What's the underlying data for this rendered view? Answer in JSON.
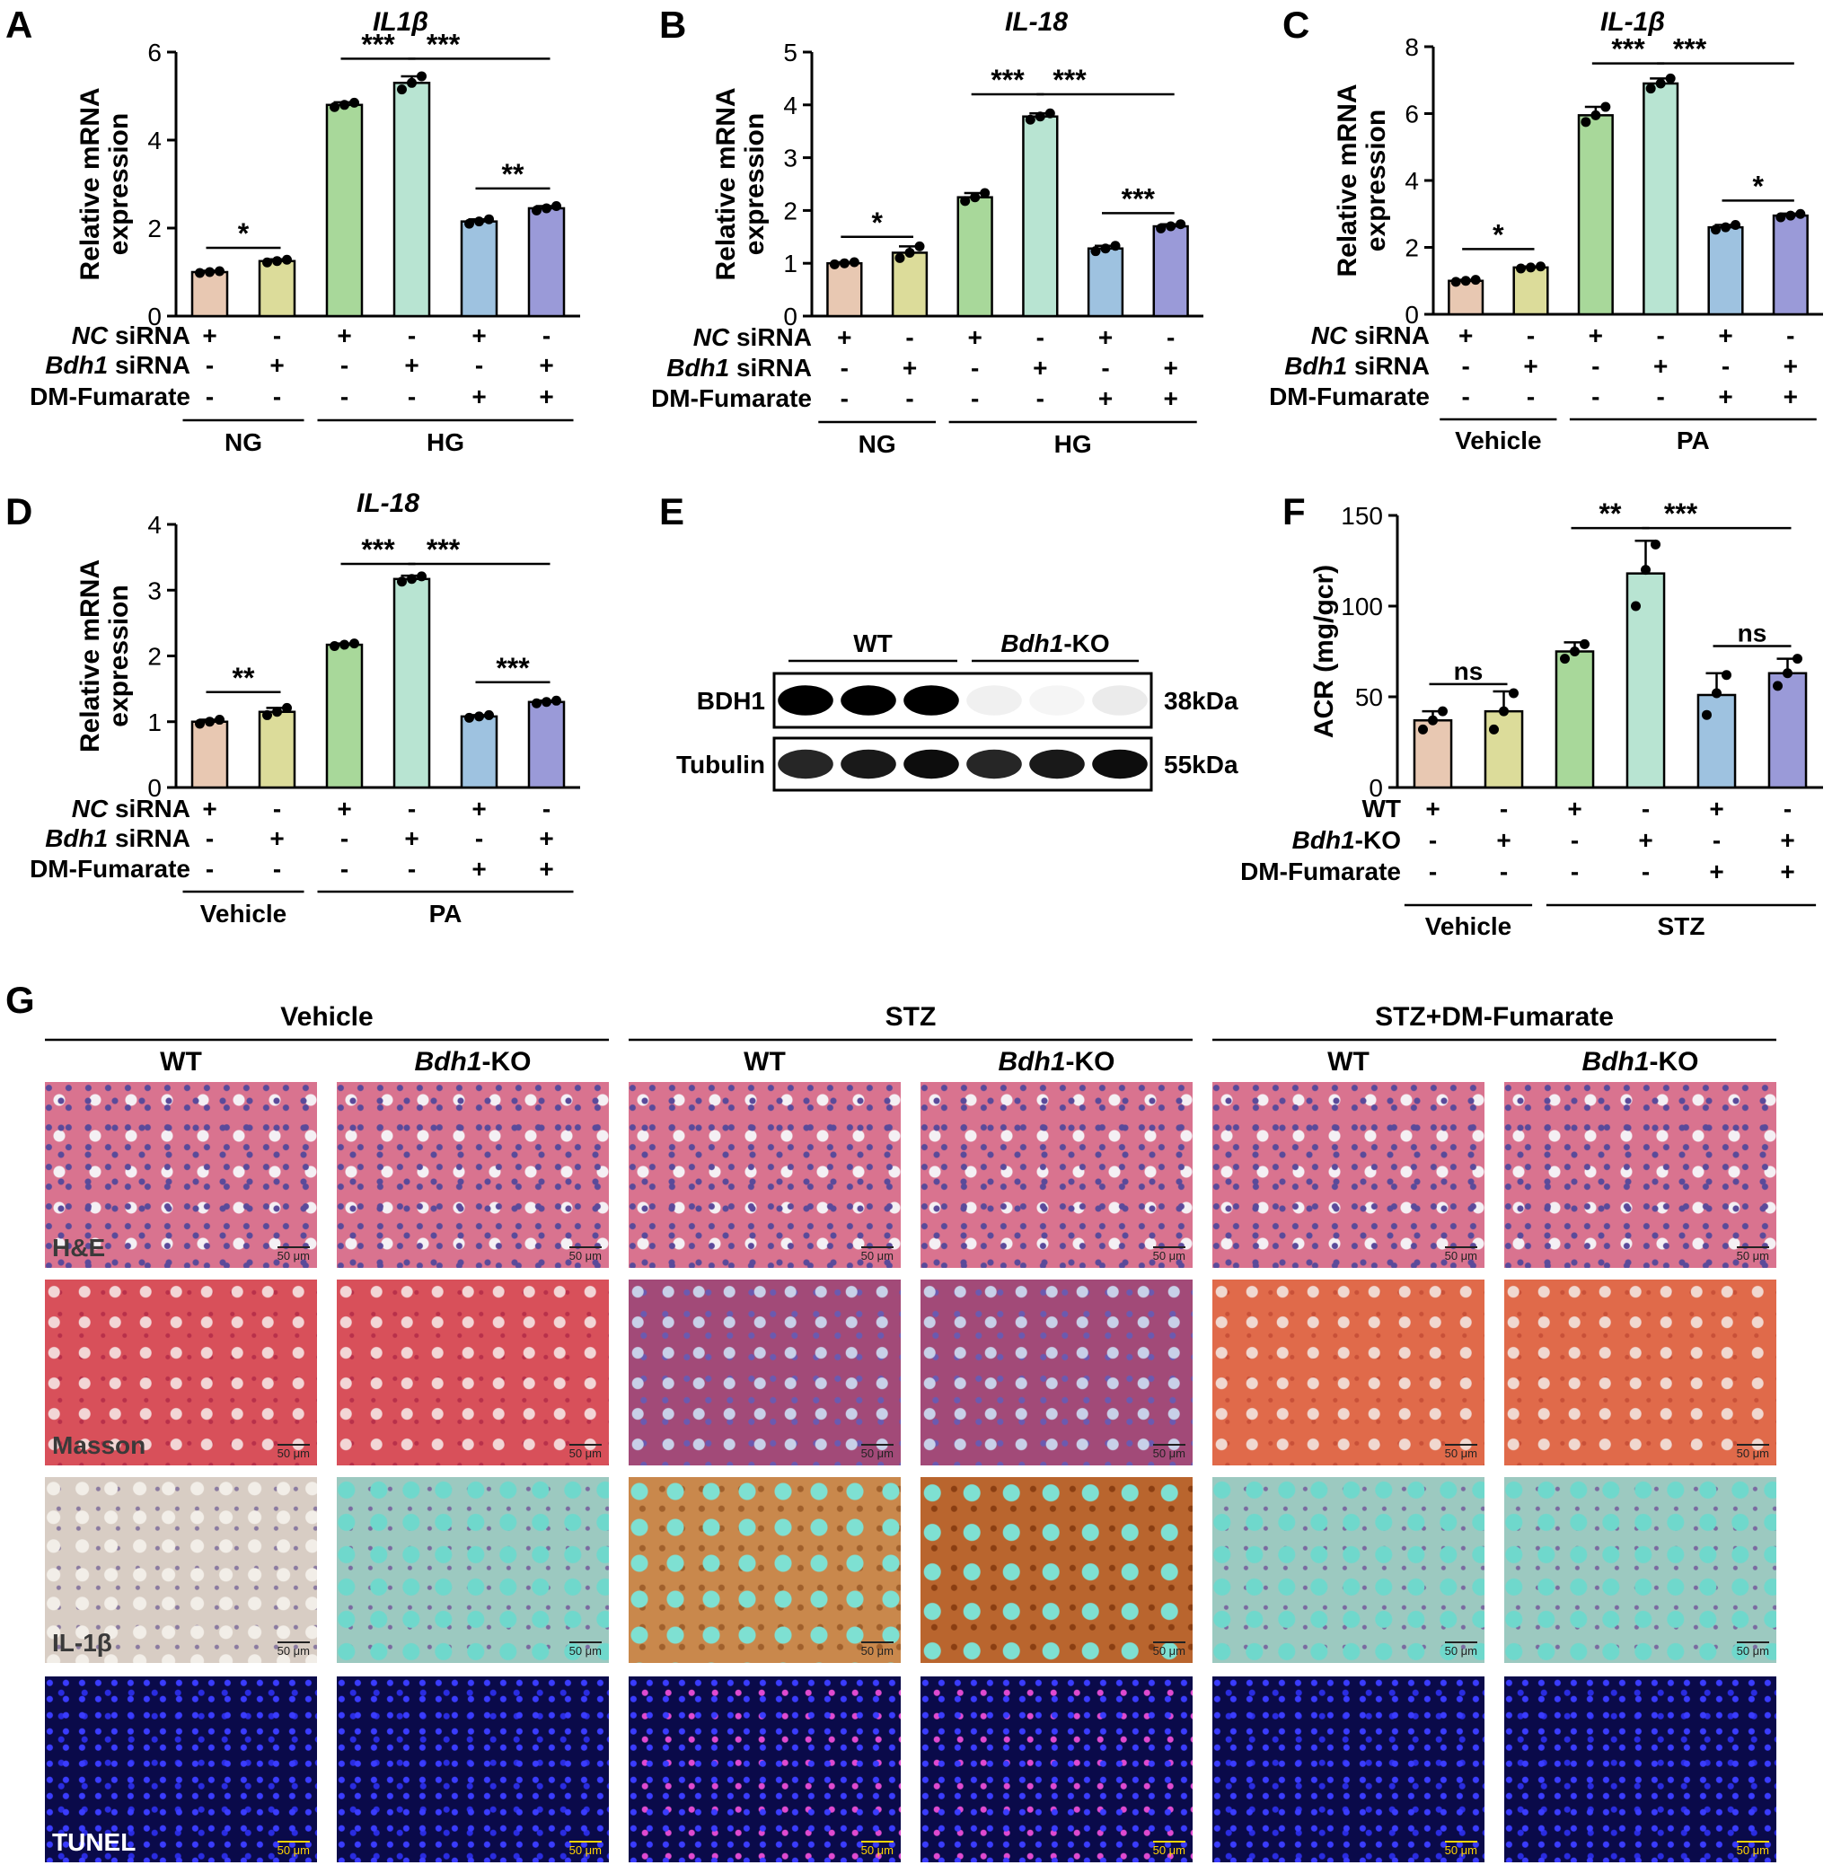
{
  "colors": {
    "bar1": "#e8c8b2",
    "bar2": "#dcdc9a",
    "bar3": "#a8d89a",
    "bar4": "#b8e4d2",
    "bar5": "#9ec2e0",
    "bar6": "#9a9ad8"
  },
  "chart_data": [
    {
      "panel": "A",
      "type": "bar",
      "title": "IL1β",
      "ylabel_line1": "Relative  mRNA",
      "ylabel_line2": "expression",
      "ylim": [
        0,
        6
      ],
      "yticks": [
        "0",
        "2",
        "4",
        "6"
      ],
      "values": [
        1.0,
        1.25,
        4.8,
        5.3,
        2.15,
        2.45
      ],
      "errors": [
        0.03,
        0.04,
        0.06,
        0.15,
        0.05,
        0.05
      ],
      "points": [
        [
          0.98,
          1.0,
          1.02
        ],
        [
          1.22,
          1.25,
          1.28
        ],
        [
          4.75,
          4.8,
          4.85
        ],
        [
          5.15,
          5.3,
          5.45
        ],
        [
          2.1,
          2.15,
          2.2
        ],
        [
          2.4,
          2.45,
          2.5
        ]
      ],
      "sig": [
        {
          "i": 0,
          "j": 1,
          "label": "*",
          "y": 1.55
        },
        {
          "i": 2,
          "j": 3,
          "label": "***",
          "y": 5.85
        },
        {
          "i": 3,
          "j": 5,
          "label": "***",
          "y": 5.85
        },
        {
          "i": 4,
          "j": 5,
          "label": "**",
          "y": 2.9
        }
      ],
      "rows": [
        {
          "name": "NC siRNA",
          "italic": "NC",
          "rest": " siRNA",
          "vals": [
            "+",
            "-",
            "+",
            "-",
            "+",
            "-"
          ]
        },
        {
          "name": "Bdh1 siRNA",
          "italic": "Bdh1",
          "rest": " siRNA",
          "vals": [
            "-",
            "+",
            "-",
            "+",
            "-",
            "+"
          ]
        },
        {
          "name": "DM-Fumarate",
          "italic": "",
          "rest": "DM-Fumarate",
          "vals": [
            "-",
            "-",
            "-",
            "-",
            "+",
            "+"
          ]
        }
      ],
      "groups": [
        {
          "label": "NG",
          "from": 0,
          "to": 1
        },
        {
          "label": "HG",
          "from": 2,
          "to": 5
        }
      ]
    },
    {
      "panel": "B",
      "type": "bar",
      "title": "IL-18",
      "ylabel_line1": "Relative  mRNA",
      "ylabel_line2": "expression",
      "ylim": [
        0,
        5
      ],
      "yticks": [
        "0",
        "1",
        "2",
        "3",
        "4",
        "5"
      ],
      "values": [
        1.0,
        1.2,
        2.25,
        3.78,
        1.28,
        1.7
      ],
      "errors": [
        0.02,
        0.12,
        0.08,
        0.06,
        0.05,
        0.04
      ],
      "points": [
        [
          0.98,
          1.0,
          1.02
        ],
        [
          1.1,
          1.2,
          1.32
        ],
        [
          2.18,
          2.25,
          2.33
        ],
        [
          3.72,
          3.78,
          3.84
        ],
        [
          1.23,
          1.28,
          1.33
        ],
        [
          1.66,
          1.7,
          1.74
        ]
      ],
      "sig": [
        {
          "i": 0,
          "j": 1,
          "label": "*",
          "y": 1.5
        },
        {
          "i": 2,
          "j": 3,
          "label": "***",
          "y": 4.2
        },
        {
          "i": 3,
          "j": 5,
          "label": "***",
          "y": 4.2
        },
        {
          "i": 4,
          "j": 5,
          "label": "***",
          "y": 1.95
        }
      ],
      "rows": [
        {
          "name": "NC siRNA",
          "italic": "NC",
          "rest": " siRNA",
          "vals": [
            "+",
            "-",
            "+",
            "-",
            "+",
            "-"
          ]
        },
        {
          "name": "Bdh1 siRNA",
          "italic": "Bdh1",
          "rest": " siRNA",
          "vals": [
            "-",
            "+",
            "-",
            "+",
            "-",
            "+"
          ]
        },
        {
          "name": "DM-Fumarate",
          "italic": "",
          "rest": "DM-Fumarate",
          "vals": [
            "-",
            "-",
            "-",
            "-",
            "+",
            "+"
          ]
        }
      ],
      "groups": [
        {
          "label": "NG",
          "from": 0,
          "to": 1
        },
        {
          "label": "HG",
          "from": 2,
          "to": 5
        }
      ]
    },
    {
      "panel": "C",
      "type": "bar",
      "title": "IL-1β",
      "ylabel_line1": "Relative  mRNA",
      "ylabel_line2": "expression",
      "ylim": [
        0,
        8
      ],
      "yticks": [
        "0",
        "2",
        "4",
        "6",
        "8"
      ],
      "values": [
        1.0,
        1.4,
        5.95,
        6.9,
        2.6,
        2.95
      ],
      "errors": [
        0.03,
        0.03,
        0.25,
        0.15,
        0.07,
        0.06
      ],
      "points": [
        [
          0.97,
          1.0,
          1.03
        ],
        [
          1.37,
          1.4,
          1.43
        ],
        [
          5.75,
          5.95,
          6.2
        ],
        [
          6.75,
          6.9,
          7.05
        ],
        [
          2.53,
          2.6,
          2.67
        ],
        [
          2.9,
          2.95,
          3.0
        ]
      ],
      "sig": [
        {
          "i": 0,
          "j": 1,
          "label": "*",
          "y": 1.95
        },
        {
          "i": 2,
          "j": 3,
          "label": "***",
          "y": 7.5
        },
        {
          "i": 3,
          "j": 5,
          "label": "***",
          "y": 7.5
        },
        {
          "i": 4,
          "j": 5,
          "label": "*",
          "y": 3.4
        }
      ],
      "rows": [
        {
          "name": "NC siRNA",
          "italic": "NC",
          "rest": " siRNA",
          "vals": [
            "+",
            "-",
            "+",
            "-",
            "+",
            "-"
          ]
        },
        {
          "name": "Bdh1 siRNA",
          "italic": "Bdh1",
          "rest": " siRNA",
          "vals": [
            "-",
            "+",
            "-",
            "+",
            "-",
            "+"
          ]
        },
        {
          "name": "DM-Fumarate",
          "italic": "",
          "rest": "DM-Fumarate",
          "vals": [
            "-",
            "-",
            "-",
            "-",
            "+",
            "+"
          ]
        }
      ],
      "groups": [
        {
          "label": "Vehicle",
          "from": 0,
          "to": 1
        },
        {
          "label": "PA",
          "from": 2,
          "to": 5
        }
      ]
    },
    {
      "panel": "D",
      "type": "bar",
      "title": "IL-18",
      "ylabel_line1": "Relative  mRNA",
      "ylabel_line2": "expression",
      "ylim": [
        0,
        4
      ],
      "yticks": [
        "0",
        "1",
        "2",
        "3",
        "4"
      ],
      "values": [
        1.0,
        1.15,
        2.17,
        3.17,
        1.08,
        1.3
      ],
      "errors": [
        0.03,
        0.06,
        0.02,
        0.05,
        0.02,
        0.02
      ],
      "points": [
        [
          0.97,
          1.0,
          1.03
        ],
        [
          1.1,
          1.15,
          1.21
        ],
        [
          2.15,
          2.17,
          2.19
        ],
        [
          3.13,
          3.17,
          3.21
        ],
        [
          1.06,
          1.08,
          1.1
        ],
        [
          1.28,
          1.3,
          1.32
        ]
      ],
      "sig": [
        {
          "i": 0,
          "j": 1,
          "label": "**",
          "y": 1.45
        },
        {
          "i": 2,
          "j": 3,
          "label": "***",
          "y": 3.4
        },
        {
          "i": 3,
          "j": 5,
          "label": "***",
          "y": 3.4
        },
        {
          "i": 4,
          "j": 5,
          "label": "***",
          "y": 1.6
        }
      ],
      "rows": [
        {
          "name": "NC siRNA",
          "italic": "NC",
          "rest": " siRNA",
          "vals": [
            "+",
            "-",
            "+",
            "-",
            "+",
            "-"
          ]
        },
        {
          "name": "Bdh1 siRNA",
          "italic": "Bdh1",
          "rest": " siRNA",
          "vals": [
            "-",
            "+",
            "-",
            "+",
            "-",
            "+"
          ]
        },
        {
          "name": "DM-Fumarate",
          "italic": "",
          "rest": "DM-Fumarate",
          "vals": [
            "-",
            "-",
            "-",
            "-",
            "+",
            "+"
          ]
        }
      ],
      "groups": [
        {
          "label": "Vehicle",
          "from": 0,
          "to": 1
        },
        {
          "label": "PA",
          "from": 2,
          "to": 5
        }
      ]
    },
    {
      "panel": "F",
      "type": "bar",
      "title": "",
      "ylabel_line1": "ACR (mg/gcr)",
      "ylabel_line2": "",
      "ylim": [
        0,
        150
      ],
      "yticks": [
        "0",
        "50",
        "100",
        "150"
      ],
      "values": [
        37,
        42,
        75,
        118,
        51,
        63
      ],
      "errors": [
        5,
        11,
        5,
        18,
        12,
        8
      ],
      "points": [
        [
          32,
          37,
          42
        ],
        [
          32,
          42,
          52
        ],
        [
          71,
          75,
          79
        ],
        [
          100,
          120,
          134
        ],
        [
          40,
          52,
          62
        ],
        [
          56,
          63,
          71
        ]
      ],
      "sig": [
        {
          "i": 0,
          "j": 1,
          "label": "ns",
          "y": 57
        },
        {
          "i": 2,
          "j": 3,
          "label": "**",
          "y": 143
        },
        {
          "i": 3,
          "j": 5,
          "label": "***",
          "y": 143
        },
        {
          "i": 4,
          "j": 5,
          "label": "ns",
          "y": 78
        }
      ],
      "rows": [
        {
          "name": "WT",
          "italic": "",
          "rest": "WT",
          "vals": [
            "+",
            "-",
            "+",
            "-",
            "+",
            "-"
          ]
        },
        {
          "name": "Bdh1-KO",
          "italic": "Bdh1",
          "rest": "-KO",
          "vals": [
            "-",
            "+",
            "-",
            "+",
            "-",
            "+"
          ]
        },
        {
          "name": "DM-Fumarate",
          "italic": "",
          "rest": "DM-Fumarate",
          "vals": [
            "-",
            "-",
            "-",
            "-",
            "+",
            "+"
          ]
        }
      ],
      "groups": [
        {
          "label": "Vehicle",
          "from": 0,
          "to": 1
        },
        {
          "label": "STZ",
          "from": 2,
          "to": 5
        }
      ]
    }
  ],
  "blot": {
    "panel": "E",
    "groups": [
      {
        "label": "WT",
        "italic": "",
        "rest": "WT"
      },
      {
        "label": "Bdh1-KO",
        "italic": "Bdh1",
        "rest": "-KO"
      }
    ],
    "rows": [
      {
        "name": "BDH1",
        "size": "38kDa",
        "intensity": [
          1,
          1,
          1,
          0.06,
          0.04,
          0.08
        ]
      },
      {
        "name": "Tubulin",
        "size": "55kDa",
        "intensity": [
          0.85,
          0.9,
          0.95,
          0.85,
          0.9,
          0.95
        ]
      }
    ]
  },
  "histology": {
    "panel": "G",
    "groups": [
      "Vehicle",
      "STZ",
      "STZ+DM-Fumarate"
    ],
    "columns": [
      {
        "label": "WT",
        "italic": "",
        "rest": "WT"
      },
      {
        "label": "Bdh1-KO",
        "italic": "Bdh1",
        "rest": "-KO"
      },
      {
        "label": "WT",
        "italic": "",
        "rest": "WT"
      },
      {
        "label": "Bdh1-KO",
        "italic": "Bdh1",
        "rest": "-KO"
      },
      {
        "label": "WT",
        "italic": "",
        "rest": "WT"
      },
      {
        "label": "Bdh1-KO",
        "italic": "Bdh1",
        "rest": "-KO"
      }
    ],
    "rows": [
      {
        "stain": "H&E",
        "scale": "50 μm",
        "styles": [
          "he",
          "he",
          "he",
          "he",
          "he",
          "he"
        ],
        "label_color": "#3a3a3a",
        "scale_color": "#222222"
      },
      {
        "stain": "Masson",
        "scale": "50 μm",
        "styles": [
          "masson",
          "masson",
          "masson blue",
          "masson blue",
          "masson orange",
          "masson orange"
        ],
        "label_color": "#3a3a3a",
        "scale_color": "#222222"
      },
      {
        "stain": "IL-1β",
        "scale": "50 μm",
        "styles": [
          "ihc",
          "ihc teal",
          "ihc brown",
          "ihc dark",
          "ihc teal",
          "ihc teal"
        ],
        "label_color": "#3a3a3a",
        "scale_color": "#222222"
      },
      {
        "stain": "TUNEL",
        "scale": "50 μm",
        "styles": [
          "tunel",
          "tunel",
          "tunel pink",
          "tunel pink",
          "tunel",
          "tunel"
        ],
        "label_color": "#ffffff",
        "scale_color": "#ffd400"
      }
    ]
  }
}
